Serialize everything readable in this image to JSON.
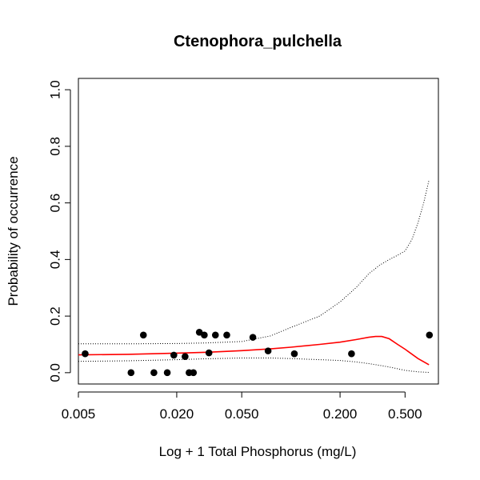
{
  "chart_data": {
    "type": "scatter",
    "title": "Ctenophora_pulchella",
    "xlabel": "Log + 1 Total Phosphorus (mg/L)",
    "ylabel": "Probability of occurrence",
    "x_scale": "log",
    "xlim": [
      0.005,
      0.8
    ],
    "ylim": [
      -0.04,
      1.04
    ],
    "x_ticks": [
      0.005,
      0.02,
      0.05,
      0.2,
      0.5
    ],
    "x_tick_labels": [
      "0.005",
      "0.020",
      "0.050",
      "0.200",
      "0.500"
    ],
    "y_ticks": [
      0.0,
      0.2,
      0.4,
      0.6,
      0.8,
      1.0
    ],
    "y_tick_labels": [
      "0.0",
      "0.2",
      "0.4",
      "0.6",
      "0.8",
      "1.0"
    ],
    "grid": false,
    "colors": {
      "fit": "#ff0000",
      "bounds": "#000000",
      "points": "#000000"
    },
    "points": [
      {
        "x": 0.0055,
        "y": 0.067
      },
      {
        "x": 0.0105,
        "y": 0.0
      },
      {
        "x": 0.0125,
        "y": 0.133
      },
      {
        "x": 0.0145,
        "y": 0.0
      },
      {
        "x": 0.0175,
        "y": 0.0
      },
      {
        "x": 0.0192,
        "y": 0.062
      },
      {
        "x": 0.0225,
        "y": 0.057
      },
      {
        "x": 0.0238,
        "y": 0.0
      },
      {
        "x": 0.0253,
        "y": 0.0
      },
      {
        "x": 0.0275,
        "y": 0.143
      },
      {
        "x": 0.0295,
        "y": 0.133
      },
      {
        "x": 0.0315,
        "y": 0.07
      },
      {
        "x": 0.0345,
        "y": 0.133
      },
      {
        "x": 0.0405,
        "y": 0.133
      },
      {
        "x": 0.0585,
        "y": 0.125
      },
      {
        "x": 0.0725,
        "y": 0.077
      },
      {
        "x": 0.105,
        "y": 0.067
      },
      {
        "x": 0.235,
        "y": 0.067
      },
      {
        "x": 0.705,
        "y": 0.133
      }
    ],
    "fit_line": [
      {
        "x": 0.005,
        "y": 0.063
      },
      {
        "x": 0.01,
        "y": 0.065
      },
      {
        "x": 0.02,
        "y": 0.069
      },
      {
        "x": 0.03,
        "y": 0.072
      },
      {
        "x": 0.05,
        "y": 0.078
      },
      {
        "x": 0.075,
        "y": 0.084
      },
      {
        "x": 0.1,
        "y": 0.09
      },
      {
        "x": 0.15,
        "y": 0.1
      },
      {
        "x": 0.2,
        "y": 0.108
      },
      {
        "x": 0.25,
        "y": 0.117
      },
      {
        "x": 0.3,
        "y": 0.125
      },
      {
        "x": 0.33,
        "y": 0.128
      },
      {
        "x": 0.36,
        "y": 0.128
      },
      {
        "x": 0.4,
        "y": 0.12
      },
      {
        "x": 0.45,
        "y": 0.1
      },
      {
        "x": 0.5,
        "y": 0.083
      },
      {
        "x": 0.6,
        "y": 0.05
      },
      {
        "x": 0.7,
        "y": 0.028
      }
    ],
    "upper_bound": [
      {
        "x": 0.005,
        "y": 0.102
      },
      {
        "x": 0.01,
        "y": 0.102
      },
      {
        "x": 0.02,
        "y": 0.103
      },
      {
        "x": 0.03,
        "y": 0.105
      },
      {
        "x": 0.05,
        "y": 0.11
      },
      {
        "x": 0.075,
        "y": 0.13
      },
      {
        "x": 0.1,
        "y": 0.16
      },
      {
        "x": 0.15,
        "y": 0.2
      },
      {
        "x": 0.2,
        "y": 0.25
      },
      {
        "x": 0.25,
        "y": 0.3
      },
      {
        "x": 0.3,
        "y": 0.35
      },
      {
        "x": 0.35,
        "y": 0.38
      },
      {
        "x": 0.4,
        "y": 0.4
      },
      {
        "x": 0.45,
        "y": 0.415
      },
      {
        "x": 0.5,
        "y": 0.43
      },
      {
        "x": 0.55,
        "y": 0.47
      },
      {
        "x": 0.6,
        "y": 0.53
      },
      {
        "x": 0.65,
        "y": 0.6
      },
      {
        "x": 0.7,
        "y": 0.68
      }
    ],
    "lower_bound": [
      {
        "x": 0.005,
        "y": 0.04
      },
      {
        "x": 0.01,
        "y": 0.042
      },
      {
        "x": 0.02,
        "y": 0.046
      },
      {
        "x": 0.03,
        "y": 0.049
      },
      {
        "x": 0.05,
        "y": 0.052
      },
      {
        "x": 0.075,
        "y": 0.052
      },
      {
        "x": 0.1,
        "y": 0.05
      },
      {
        "x": 0.15,
        "y": 0.046
      },
      {
        "x": 0.2,
        "y": 0.043
      },
      {
        "x": 0.25,
        "y": 0.038
      },
      {
        "x": 0.3,
        "y": 0.032
      },
      {
        "x": 0.35,
        "y": 0.026
      },
      {
        "x": 0.4,
        "y": 0.02
      },
      {
        "x": 0.45,
        "y": 0.014
      },
      {
        "x": 0.5,
        "y": 0.008
      },
      {
        "x": 0.6,
        "y": 0.003
      },
      {
        "x": 0.7,
        "y": 0.001
      }
    ]
  }
}
